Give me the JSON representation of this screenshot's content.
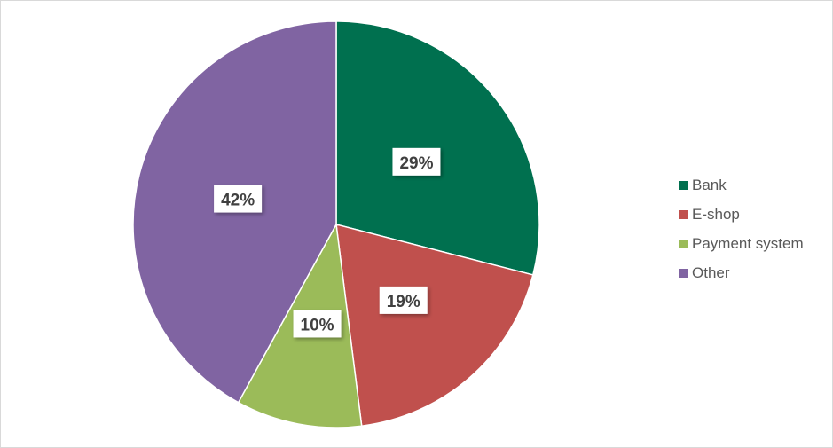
{
  "chart_data": {
    "type": "pie",
    "title": "",
    "categories": [
      "Bank",
      "E-shop",
      "Payment system",
      "Other"
    ],
    "values": [
      29,
      19,
      10,
      42
    ],
    "labels": [
      "29%",
      "19%",
      "10%",
      "42%"
    ],
    "colors": [
      "#00704f",
      "#c0504d",
      "#9bbb59",
      "#8064a2"
    ],
    "legend_placement": "right",
    "start_angle": "top, clockwise"
  }
}
